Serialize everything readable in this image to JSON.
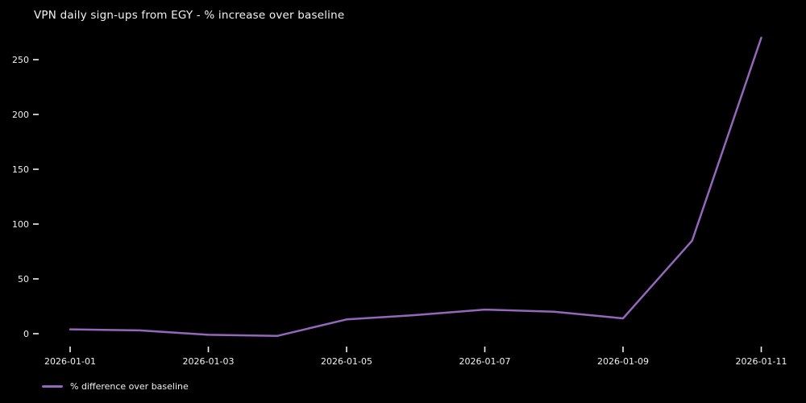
{
  "chart_data": {
    "type": "line",
    "title": "VPN daily sign-ups from EGY - % increase over baseline",
    "x": [
      "2026-01-01",
      "2026-01-02",
      "2026-01-03",
      "2026-01-04",
      "2026-01-05",
      "2026-01-06",
      "2026-01-07",
      "2026-01-08",
      "2026-01-09",
      "2026-01-10",
      "2026-01-11"
    ],
    "series": [
      {
        "name": "% difference over baseline",
        "values": [
          4,
          3,
          -1,
          -2,
          13,
          17,
          22,
          20,
          14,
          85,
          270
        ],
        "color": "#9467bd"
      }
    ],
    "xtick_labels": [
      "2026-01-01",
      "2026-01-03",
      "2026-01-05",
      "2026-01-07",
      "2026-01-09",
      "2026-01-11"
    ],
    "ytick_values": [
      0,
      50,
      100,
      150,
      200,
      250
    ],
    "ylim": [
      -17,
      282
    ],
    "xlabel": "",
    "ylabel": "",
    "grid": false,
    "legend": {
      "label": "% difference over baseline",
      "position": "lower-left"
    },
    "colors": {
      "background": "#000000",
      "text": "#f0f0f0",
      "line": "#9467bd"
    }
  }
}
